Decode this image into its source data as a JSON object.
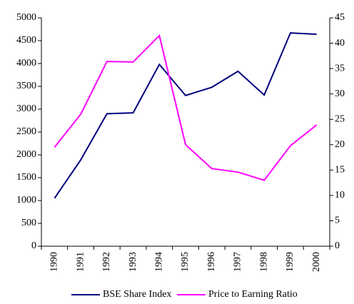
{
  "chart_data": {
    "type": "line",
    "categories": [
      "1990",
      "1991",
      "1992",
      "1993",
      "1994",
      "1995",
      "1996",
      "1997",
      "1998",
      "1999",
      "2000"
    ],
    "series": [
      {
        "name": "BSE Share Index",
        "color": "#000080",
        "values": [
          1050,
          1890,
          2900,
          2920,
          3980,
          3300,
          3480,
          3830,
          3310,
          4670,
          4640
        ]
      },
      {
        "name": "Price to Earning Ratio",
        "color": "#ff00ff",
        "axis": "y2",
        "values": [
          19.5,
          26,
          36.4,
          36.3,
          41.5,
          20,
          15.3,
          14.6,
          13,
          19.8,
          23.9
        ]
      }
    ],
    "ylim": [
      0,
      5000
    ],
    "yticks": [
      0,
      500,
      1000,
      1500,
      2000,
      2500,
      3000,
      3500,
      4000,
      4500,
      5000
    ],
    "y2lim": [
      0,
      45
    ],
    "y2ticks": [
      0,
      5,
      10,
      15,
      20,
      25,
      30,
      35,
      40,
      45
    ],
    "legend": "bottom"
  }
}
